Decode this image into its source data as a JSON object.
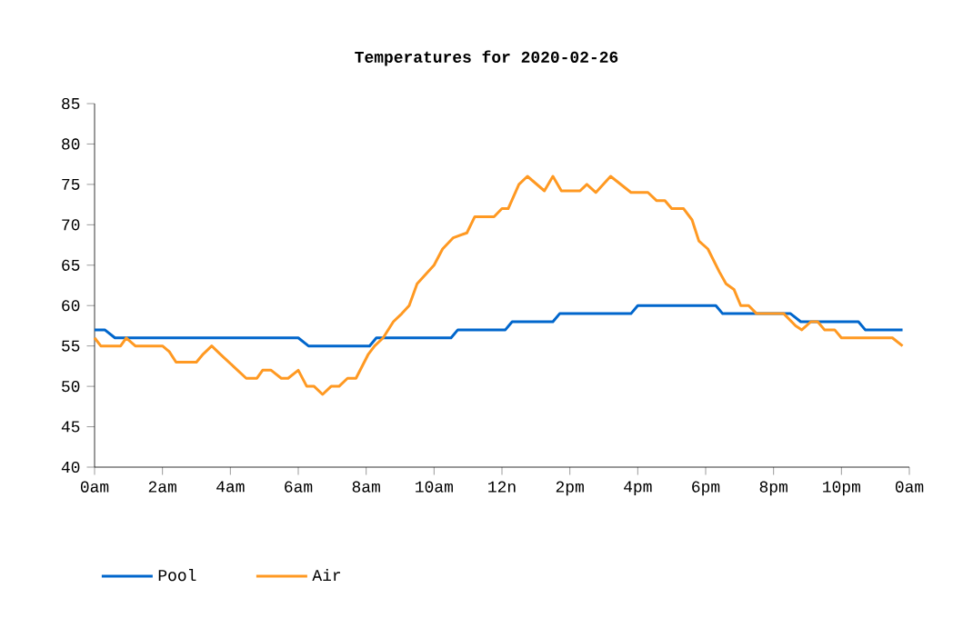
{
  "chart_data": {
    "type": "line",
    "title": "Temperatures for 2020-02-26",
    "xlim": [
      "2020-02-26T00:00",
      "2020-02-27T00:00"
    ],
    "ylim": [
      40,
      85
    ],
    "xticks": [
      {
        "value": "2020-02-26T00:00",
        "label": "0am"
      },
      {
        "value": "2020-02-26T02:00",
        "label": "2am"
      },
      {
        "value": "2020-02-26T04:00",
        "label": "4am"
      },
      {
        "value": "2020-02-26T06:00",
        "label": "6am"
      },
      {
        "value": "2020-02-26T08:00",
        "label": "8am"
      },
      {
        "value": "2020-02-26T10:00",
        "label": "10am"
      },
      {
        "value": "2020-02-26T12:00",
        "label": "12n"
      },
      {
        "value": "2020-02-26T14:00",
        "label": "2pm"
      },
      {
        "value": "2020-02-26T16:00",
        "label": "4pm"
      },
      {
        "value": "2020-02-26T18:00",
        "label": "6pm"
      },
      {
        "value": "2020-02-26T20:00",
        "label": "8pm"
      },
      {
        "value": "2020-02-26T22:00",
        "label": "10pm"
      },
      {
        "value": "2020-02-27T00:00",
        "label": "0am"
      }
    ],
    "yticks": [
      40,
      45,
      50,
      55,
      60,
      65,
      70,
      75,
      80,
      85
    ],
    "grid": false,
    "legend": "bottom",
    "marker": "none",
    "line_style": "solid",
    "series": [
      {
        "name": "Pool",
        "color": "#0066cc",
        "x": [
          "2020-02-26T00:00",
          "2020-02-26T00:18",
          "2020-02-26T00:36",
          "2020-02-26T06:00",
          "2020-02-26T06:18",
          "2020-02-26T08:06",
          "2020-02-26T08:18",
          "2020-02-26T10:30",
          "2020-02-26T10:42",
          "2020-02-26T12:06",
          "2020-02-26T12:18",
          "2020-02-26T13:30",
          "2020-02-26T13:42",
          "2020-02-26T15:48",
          "2020-02-26T16:00",
          "2020-02-26T18:18",
          "2020-02-26T18:30",
          "2020-02-26T20:30",
          "2020-02-26T20:48",
          "2020-02-26T22:30",
          "2020-02-26T22:42",
          "2020-02-26T23:48"
        ],
        "values": [
          57,
          57,
          56,
          56,
          55,
          55,
          56,
          56,
          57,
          57,
          58,
          58,
          59,
          59,
          60,
          60,
          59,
          59,
          58,
          58,
          57,
          57
        ]
      },
      {
        "name": "Air",
        "color": "#ff9922",
        "x": [
          "2020-02-26T00:00",
          "2020-02-26T00:11",
          "2020-02-26T00:46",
          "2020-02-26T00:56",
          "2020-02-26T01:12",
          "2020-02-26T02:00",
          "2020-02-26T02:12",
          "2020-02-26T02:24",
          "2020-02-26T03:00",
          "2020-02-26T03:12",
          "2020-02-26T03:27",
          "2020-02-26T03:42",
          "2020-02-26T04:28",
          "2020-02-26T04:47",
          "2020-02-26T04:57",
          "2020-02-26T05:12",
          "2020-02-26T05:30",
          "2020-02-26T05:42",
          "2020-02-26T06:00",
          "2020-02-26T06:15",
          "2020-02-26T06:28",
          "2020-02-26T06:43",
          "2020-02-26T06:58",
          "2020-02-26T07:12",
          "2020-02-26T07:27",
          "2020-02-26T07:42",
          "2020-02-26T08:04",
          "2020-02-26T08:15",
          "2020-02-26T08:30",
          "2020-02-26T08:48",
          "2020-02-26T09:03",
          "2020-02-26T09:16",
          "2020-02-26T09:30",
          "2020-02-26T10:00",
          "2020-02-26T10:15",
          "2020-02-26T10:34",
          "2020-02-26T10:58",
          "2020-02-26T11:12",
          "2020-02-26T11:46",
          "2020-02-26T12:00",
          "2020-02-26T12:11",
          "2020-02-26T12:30",
          "2020-02-26T12:45",
          "2020-02-26T13:15",
          "2020-02-26T13:30",
          "2020-02-26T13:45",
          "2020-02-26T14:18",
          "2020-02-26T14:30",
          "2020-02-26T14:46",
          "2020-02-26T15:12",
          "2020-02-26T15:48",
          "2020-02-26T16:18",
          "2020-02-26T16:33",
          "2020-02-26T16:48",
          "2020-02-26T17:00",
          "2020-02-26T17:21",
          "2020-02-26T17:36",
          "2020-02-26T17:48",
          "2020-02-26T18:04",
          "2020-02-26T18:24",
          "2020-02-26T18:36",
          "2020-02-26T18:50",
          "2020-02-26T19:02",
          "2020-02-26T19:16",
          "2020-02-26T19:30",
          "2020-02-26T20:18",
          "2020-02-26T20:39",
          "2020-02-26T20:50",
          "2020-02-26T21:06",
          "2020-02-26T21:18",
          "2020-02-26T21:30",
          "2020-02-26T21:48",
          "2020-02-26T22:00",
          "2020-02-26T23:30",
          "2020-02-26T23:48"
        ],
        "values": [
          56,
          55,
          55,
          56,
          55,
          55,
          54.3,
          53,
          53,
          54,
          55,
          54,
          51,
          51,
          52,
          52,
          51,
          51,
          52,
          50,
          50,
          49,
          50,
          50,
          51,
          51,
          54,
          55,
          56,
          58,
          59,
          60,
          62.7,
          65,
          67,
          68.4,
          69,
          71,
          71,
          72,
          72,
          75,
          76,
          74.2,
          76,
          74.2,
          74.2,
          75,
          74,
          76,
          74,
          74,
          73,
          73,
          72,
          72,
          70.6,
          68,
          67,
          64.2,
          62.7,
          62,
          60,
          60,
          59,
          59,
          57.5,
          57,
          58,
          58,
          57,
          57,
          56,
          56,
          55
        ]
      }
    ]
  }
}
